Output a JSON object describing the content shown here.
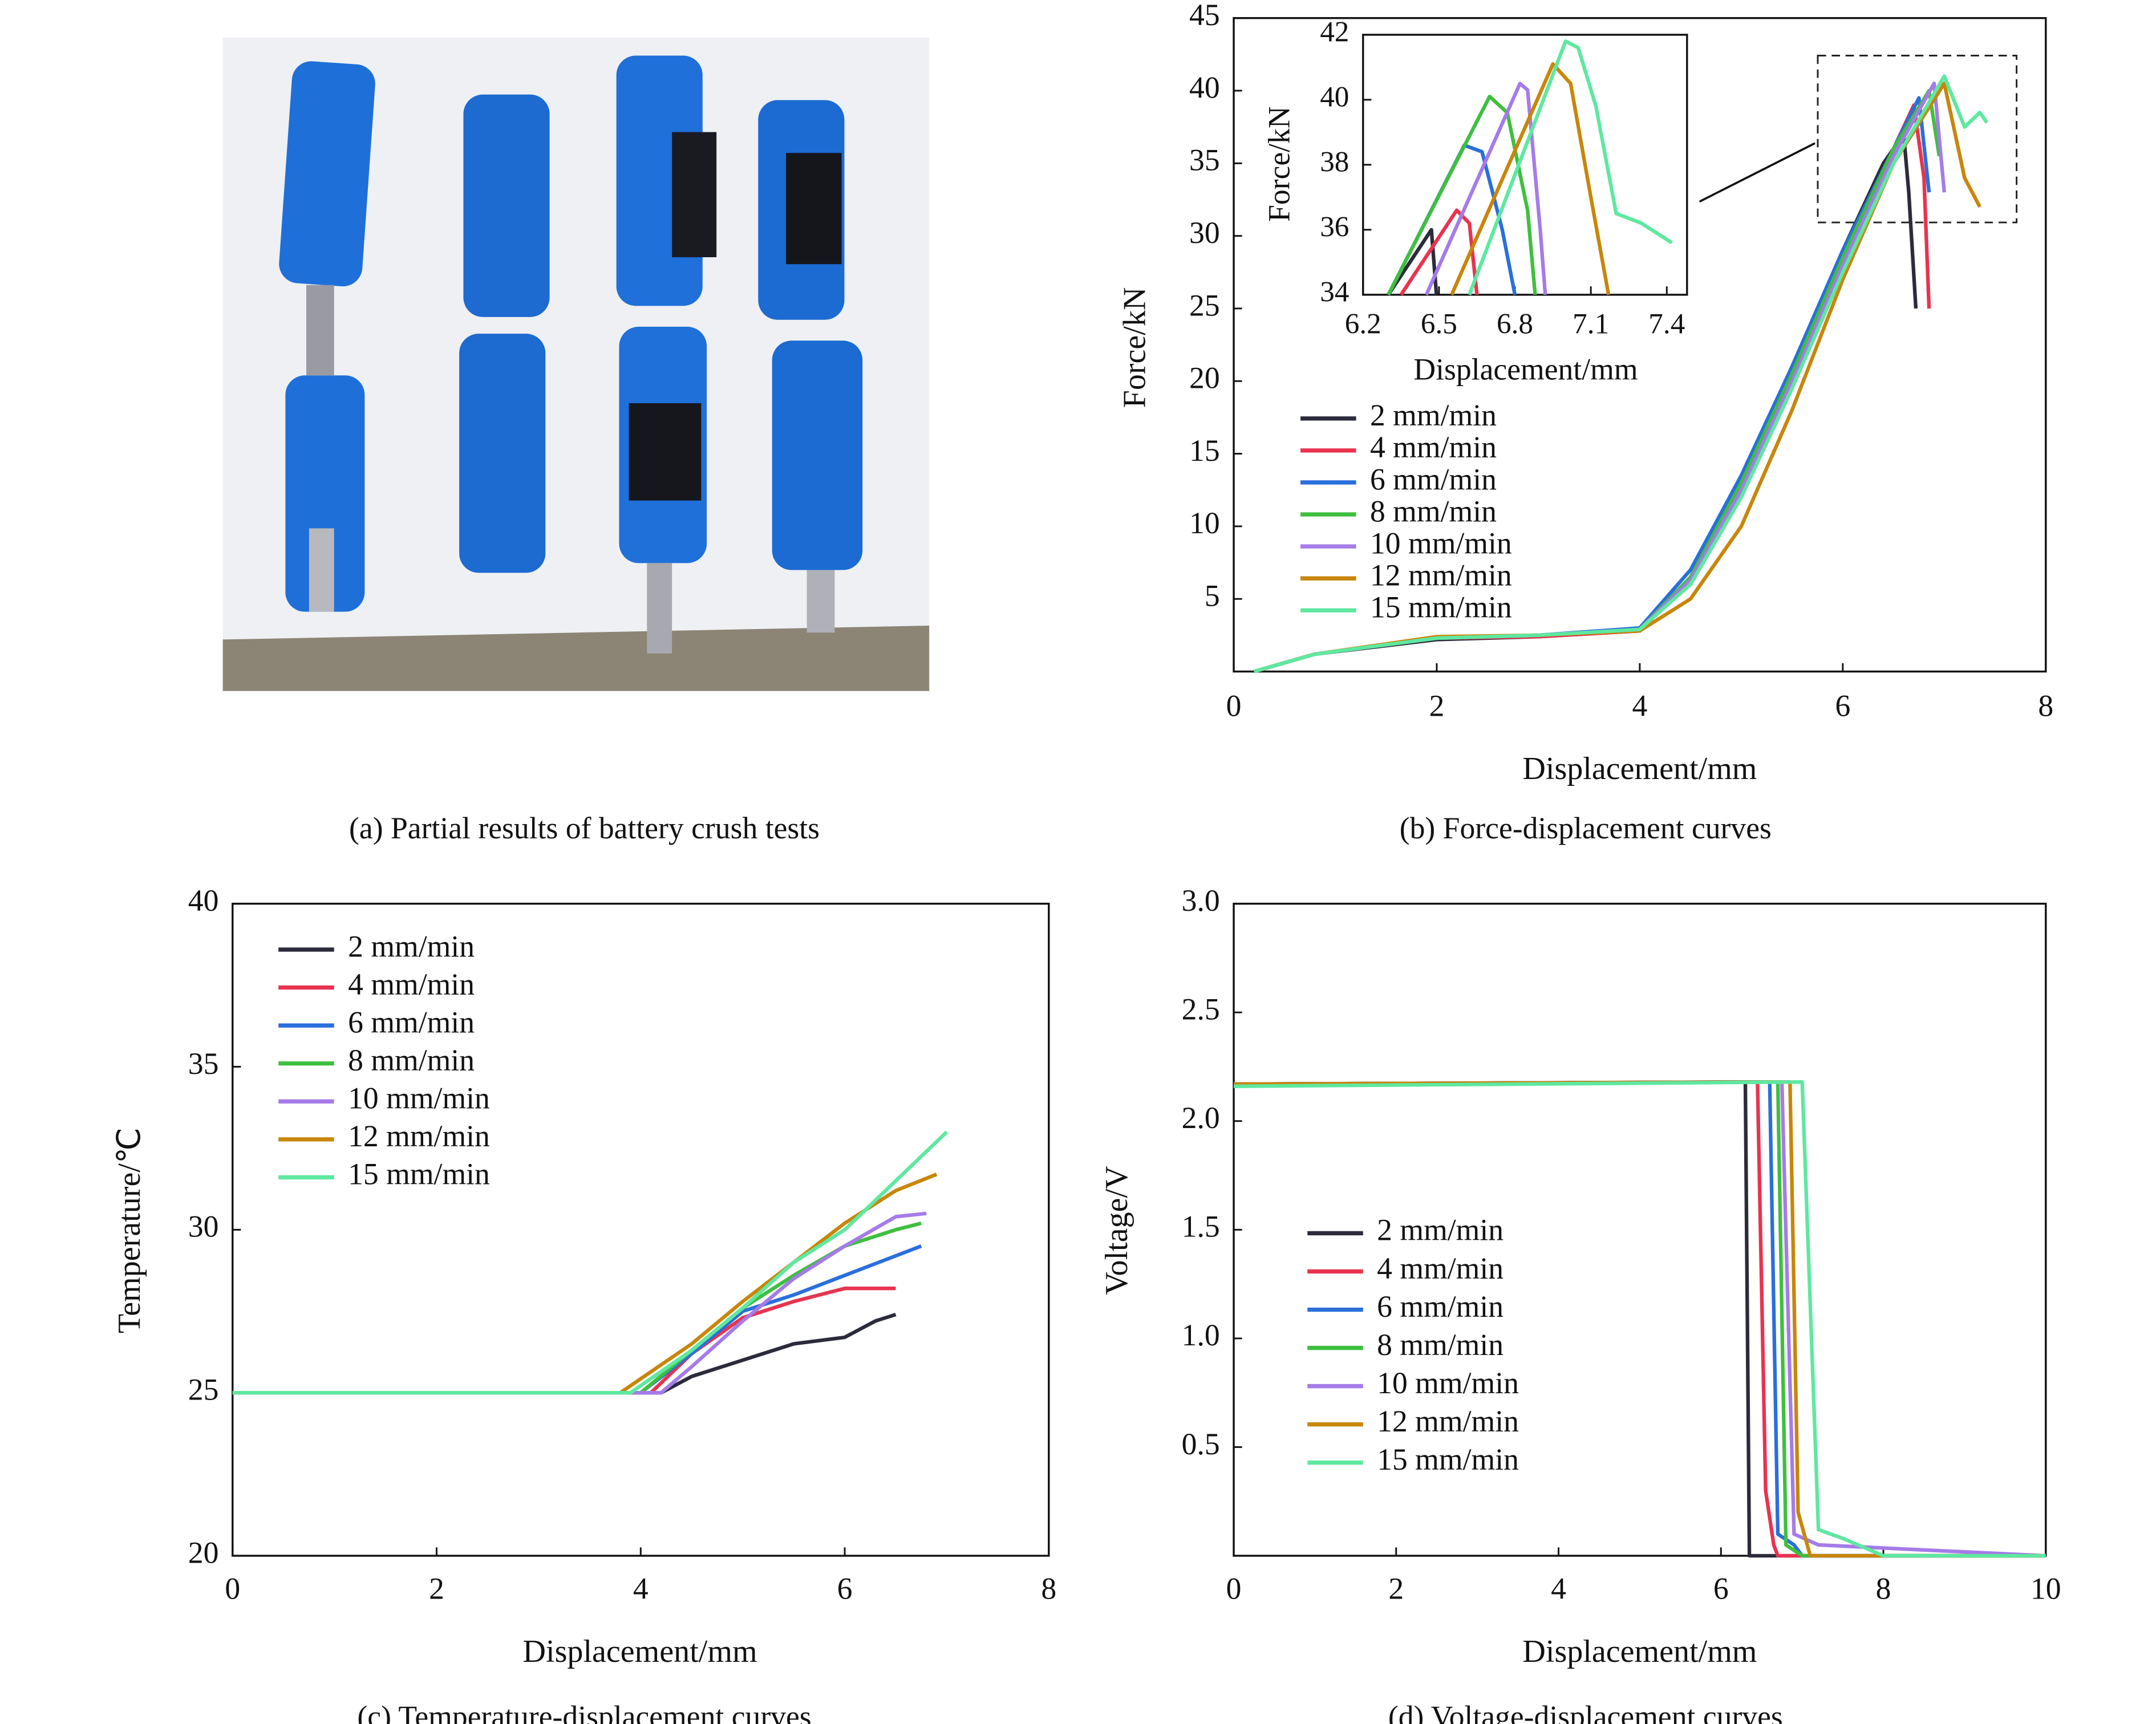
{
  "photo": {
    "caption": "(a) Partial results of battery crush tests"
  },
  "chart_data": [
    {
      "type": "line",
      "caption": "(b) Force-displacement curves",
      "x_label": "Displacement/mm",
      "y_label": "Force/kN",
      "xlim": [
        0,
        8
      ],
      "xticks": [
        0,
        2,
        4,
        6,
        8
      ],
      "ylim": [
        0,
        45
      ],
      "yticks": [
        5,
        10,
        15,
        20,
        25,
        30,
        35,
        40,
        45
      ],
      "grid": false,
      "legend": "center left",
      "series": [
        {
          "name": "2 mm/min",
          "color": "#2b2b3b",
          "x": [
            0.2,
            0.8,
            2,
            3,
            4,
            4.5,
            5,
            5.5,
            6,
            6.4,
            6.6,
            6.65,
            6.72
          ],
          "values": [
            0,
            1.2,
            2.2,
            2.4,
            2.8,
            6.5,
            13,
            21,
            29,
            35,
            37,
            33,
            25
          ]
        },
        {
          "name": "4 mm/min",
          "color": "#e8334f",
          "x": [
            0.2,
            0.8,
            2,
            3,
            4,
            4.5,
            5,
            5.5,
            6,
            6.5,
            6.7,
            6.8,
            6.85
          ],
          "values": [
            0,
            1.2,
            2.3,
            2.4,
            2.8,
            6.3,
            12.5,
            20.5,
            28,
            36,
            39,
            34,
            25
          ]
        },
        {
          "name": "6 mm/min",
          "color": "#2a6fdb",
          "x": [
            0.2,
            0.8,
            2,
            3,
            4,
            4.5,
            5,
            5.5,
            6,
            6.5,
            6.75,
            6.85
          ],
          "values": [
            0,
            1.2,
            2.3,
            2.5,
            3,
            7,
            13.5,
            21,
            29,
            36,
            39.5,
            33
          ]
        },
        {
          "name": "8 mm/min",
          "color": "#3fbf3f",
          "x": [
            0.2,
            0.8,
            2,
            3,
            4,
            4.5,
            5,
            5.5,
            6,
            6.5,
            6.85,
            6.95
          ],
          "values": [
            0,
            1.2,
            2.3,
            2.5,
            2.9,
            6.5,
            13,
            20.5,
            28.5,
            36,
            40,
            35.5
          ]
        },
        {
          "name": "10 mm/min",
          "color": "#a57be8",
          "x": [
            0.2,
            0.8,
            2,
            3,
            4,
            4.5,
            5,
            5.5,
            6,
            6.5,
            6.9,
            7.0
          ],
          "values": [
            0,
            1.2,
            2.3,
            2.5,
            2.9,
            6.3,
            12.5,
            20,
            28,
            35.5,
            40.5,
            33
          ]
        },
        {
          "name": "12 mm/min",
          "color": "#c8860a",
          "x": [
            0.2,
            0.8,
            2,
            3,
            4,
            4.5,
            5,
            5.5,
            6,
            6.5,
            7.0,
            7.2,
            7.35
          ],
          "values": [
            0,
            1.2,
            2.4,
            2.5,
            2.8,
            5,
            10,
            18,
            27,
            35,
            40.5,
            34,
            32
          ]
        },
        {
          "name": "15 mm/min",
          "color": "#5ee8a0",
          "x": [
            0.2,
            0.8,
            2,
            3,
            4,
            4.5,
            5,
            5.5,
            6,
            6.5,
            7.0,
            7.2,
            7.35,
            7.42
          ],
          "values": [
            0,
            1.2,
            2.3,
            2.5,
            2.9,
            6,
            12,
            19.5,
            27.5,
            35,
            41,
            37.5,
            38.5,
            37.8
          ]
        }
      ]
    },
    {
      "type": "line",
      "x_label": "Displacement/mm",
      "y_label": "Force/kN",
      "xlim": [
        6.2,
        7.48
      ],
      "xticks": [
        6.2,
        6.5,
        6.8,
        7.1,
        7.4
      ],
      "ylim": [
        34,
        42
      ],
      "yticks": [
        34,
        36,
        38,
        40,
        42
      ],
      "grid": false,
      "series": [
        {
          "color": "#2b2b3b",
          "x": [
            6.3,
            6.47,
            6.49
          ],
          "values": [
            34,
            36,
            34
          ]
        },
        {
          "color": "#e8334f",
          "x": [
            6.35,
            6.57,
            6.62,
            6.65
          ],
          "values": [
            34,
            36.6,
            36.2,
            34
          ]
        },
        {
          "color": "#2a6fdb",
          "x": [
            6.3,
            6.6,
            6.67,
            6.75,
            6.8
          ],
          "values": [
            34,
            38.6,
            38.4,
            36,
            34
          ]
        },
        {
          "color": "#3fbf3f",
          "x": [
            6.3,
            6.7,
            6.77,
            6.85,
            6.88
          ],
          "values": [
            34,
            40.1,
            39.6,
            36.6,
            34
          ]
        },
        {
          "color": "#a57be8",
          "x": [
            6.45,
            6.82,
            6.85,
            6.9,
            6.92
          ],
          "values": [
            34,
            40.5,
            40.3,
            36,
            34
          ]
        },
        {
          "color": "#c8860a",
          "x": [
            6.55,
            6.95,
            7.02,
            7.1,
            7.17
          ],
          "values": [
            34,
            41.1,
            40.5,
            37,
            34
          ]
        },
        {
          "color": "#5ee8a0",
          "x": [
            6.62,
            7.0,
            7.05,
            7.12,
            7.2,
            7.3,
            7.42
          ],
          "values": [
            34,
            41.8,
            41.6,
            39.8,
            36.5,
            36.2,
            35.6
          ]
        }
      ]
    },
    {
      "type": "line",
      "caption": "(c) Temperature-displacement curves",
      "x_label": "Displacement/mm",
      "y_label": "Temperature/℃",
      "xlim": [
        0,
        8
      ],
      "xticks": [
        0,
        2,
        4,
        6,
        8
      ],
      "ylim": [
        20,
        40
      ],
      "yticks": [
        20,
        25,
        30,
        35,
        40
      ],
      "grid": false,
      "legend": "upper left",
      "series": [
        {
          "name": "2 mm/min",
          "color": "#2b2b3b",
          "x": [
            0,
            4.2,
            4.5,
            5,
            5.5,
            6,
            6.3,
            6.5
          ],
          "values": [
            25,
            25,
            25.5,
            26,
            26.5,
            26.7,
            27.2,
            27.4
          ]
        },
        {
          "name": "4 mm/min",
          "color": "#e8334f",
          "x": [
            0,
            4.1,
            4.5,
            5,
            5.5,
            6,
            6.5
          ],
          "values": [
            25,
            25,
            26.2,
            27.3,
            27.8,
            28.2,
            28.2
          ]
        },
        {
          "name": "6 mm/min",
          "color": "#2a6fdb",
          "x": [
            0,
            4,
            4.5,
            5,
            5.5,
            6,
            6.5,
            6.75
          ],
          "values": [
            25,
            25,
            26.2,
            27.5,
            28,
            28.6,
            29.2,
            29.5
          ]
        },
        {
          "name": "8 mm/min",
          "color": "#3fbf3f",
          "x": [
            0,
            4,
            4.5,
            5,
            5.5,
            6,
            6.5,
            6.75
          ],
          "values": [
            25,
            25,
            26.3,
            27.6,
            28.6,
            29.5,
            30,
            30.2
          ]
        },
        {
          "name": "10 mm/min",
          "color": "#a57be8",
          "x": [
            0,
            4.2,
            4.5,
            5,
            5.5,
            6,
            6.5,
            6.8
          ],
          "values": [
            25,
            25,
            25.8,
            27.2,
            28.5,
            29.5,
            30.4,
            30.5
          ]
        },
        {
          "name": "12 mm/min",
          "color": "#c8860a",
          "x": [
            0,
            3.8,
            4.5,
            5,
            5.5,
            6,
            6.5,
            6.9
          ],
          "values": [
            25,
            25,
            26.5,
            27.8,
            29,
            30.2,
            31.2,
            31.7
          ]
        },
        {
          "name": "15 mm/min",
          "color": "#5ee8a0",
          "x": [
            0,
            3.9,
            4.5,
            5,
            5.5,
            6,
            6.5,
            7
          ],
          "values": [
            25,
            25,
            26.3,
            27.6,
            29,
            30,
            31.5,
            33
          ]
        }
      ]
    },
    {
      "type": "line",
      "caption": "(d) Voltage-displacement curves",
      "x_label": "Displacement/mm",
      "y_label": "Voltage/V",
      "xlim": [
        0,
        10
      ],
      "xticks": [
        0,
        2,
        4,
        6,
        8,
        10
      ],
      "ylim": [
        0,
        3
      ],
      "yticks": [
        0.5,
        1.0,
        1.5,
        2.0,
        2.5,
        3.0
      ],
      "grid": false,
      "legend": "center left",
      "series": [
        {
          "name": "2 mm/min",
          "color": "#2b2b3b",
          "x": [
            0,
            6.3,
            6.35,
            10
          ],
          "values": [
            2.17,
            2.18,
            0,
            0
          ]
        },
        {
          "name": "4 mm/min",
          "color": "#e8334f",
          "x": [
            0,
            6.45,
            6.55,
            6.65,
            6.7,
            10
          ],
          "values": [
            2.17,
            2.18,
            0.3,
            0.05,
            0,
            0
          ]
        },
        {
          "name": "6 mm/min",
          "color": "#2a6fdb",
          "x": [
            0,
            6.6,
            6.7,
            6.9,
            7,
            10
          ],
          "values": [
            2.17,
            2.18,
            0.1,
            0.05,
            0,
            0
          ]
        },
        {
          "name": "8 mm/min",
          "color": "#3fbf3f",
          "x": [
            0,
            6.7,
            6.8,
            7,
            10
          ],
          "values": [
            2.17,
            2.18,
            0.05,
            0,
            0
          ]
        },
        {
          "name": "10 mm/min",
          "color": "#a57be8",
          "x": [
            0,
            6.75,
            6.9,
            7.2,
            10
          ],
          "values": [
            2.17,
            2.18,
            0.1,
            0.05,
            0
          ]
        },
        {
          "name": "12 mm/min",
          "color": "#c8860a",
          "x": [
            0,
            6.85,
            6.95,
            7.1,
            10
          ],
          "values": [
            2.17,
            2.18,
            0.2,
            0,
            0
          ]
        },
        {
          "name": "15 mm/min",
          "color": "#5ee8a0",
          "x": [
            0,
            7.0,
            7.2,
            7.5,
            8,
            10
          ],
          "values": [
            2.16,
            2.18,
            0.12,
            0.08,
            0,
            0
          ]
        }
      ]
    }
  ]
}
